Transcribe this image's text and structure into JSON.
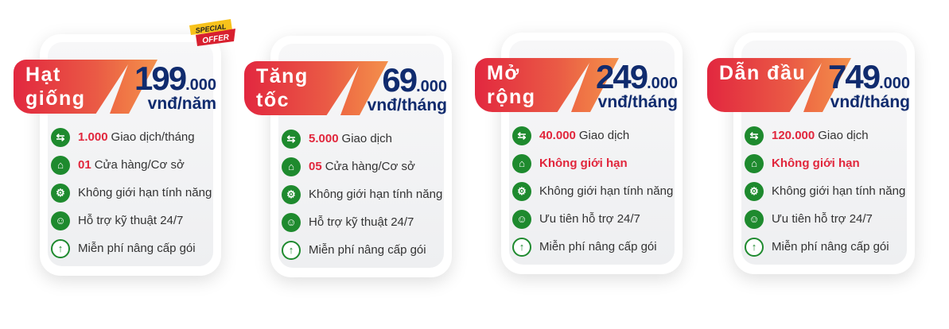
{
  "badge": {
    "line1": "SPECIAL",
    "line2": "OFFER"
  },
  "colors": {
    "accent_red": "#e1263c",
    "price_blue": "#102b6e",
    "icon_green": "#1e8a2e"
  },
  "plans": [
    {
      "name": "Hạt giống",
      "price": "199",
      "price_small": ".000",
      "unit": "vnđ/năm",
      "features": [
        {
          "icon": "transfer-arrows-icon",
          "highlight": "1.000",
          "text": "Giao dịch/tháng"
        },
        {
          "icon": "store-icon",
          "highlight": "01",
          "text": "Cửa hàng/Cơ sở"
        },
        {
          "icon": "gear-icon",
          "highlight": "",
          "text": "Không giới hạn tính năng"
        },
        {
          "icon": "support-people-icon",
          "highlight": "",
          "text": "Hỗ trợ kỹ thuật 24/7"
        },
        {
          "icon": "arrow-up-circle-icon",
          "highlight": "",
          "text": "Miễn phí nâng cấp gói"
        }
      ]
    },
    {
      "name": "Tăng tốc",
      "price": "69",
      "price_small": ".000",
      "unit": "vnđ/tháng",
      "features": [
        {
          "icon": "transfer-arrows-icon",
          "highlight": "5.000",
          "text": "Giao dịch"
        },
        {
          "icon": "store-icon",
          "highlight": "05",
          "text": "Cửa hàng/Cơ sở"
        },
        {
          "icon": "gear-icon",
          "highlight": "",
          "text": "Không giới hạn tính năng"
        },
        {
          "icon": "support-people-icon",
          "highlight": "",
          "text": "Hỗ trợ kỹ thuật 24/7"
        },
        {
          "icon": "arrow-up-circle-icon",
          "highlight": "",
          "text": "Miễn phí nâng cấp gói"
        }
      ]
    },
    {
      "name": "Mở rộng",
      "price": "249",
      "price_small": ".000",
      "unit": "vnđ/tháng",
      "features": [
        {
          "icon": "transfer-arrows-icon",
          "highlight": "40.000",
          "text": "Giao dịch"
        },
        {
          "icon": "store-icon",
          "highlight": "Không giới hạn",
          "text": ""
        },
        {
          "icon": "gear-icon",
          "highlight": "",
          "text": "Không giới hạn tính năng"
        },
        {
          "icon": "support-people-icon",
          "highlight": "",
          "text": "Ưu tiên hỗ trợ 24/7"
        },
        {
          "icon": "arrow-up-circle-icon",
          "highlight": "",
          "text": "Miễn phí nâng cấp gói"
        }
      ]
    },
    {
      "name": "Dẫn đầu",
      "price": "749",
      "price_small": ".000",
      "unit": "vnđ/tháng",
      "features": [
        {
          "icon": "transfer-arrows-icon",
          "highlight": "120.000",
          "text": "Giao dịch"
        },
        {
          "icon": "store-icon",
          "highlight": "Không giới hạn",
          "text": ""
        },
        {
          "icon": "gear-icon",
          "highlight": "",
          "text": "Không giới hạn tính năng"
        },
        {
          "icon": "support-people-icon",
          "highlight": "",
          "text": "Ưu tiên hỗ trợ 24/7"
        },
        {
          "icon": "arrow-up-circle-icon",
          "highlight": "",
          "text": "Miễn phí nâng cấp gói"
        }
      ]
    }
  ]
}
